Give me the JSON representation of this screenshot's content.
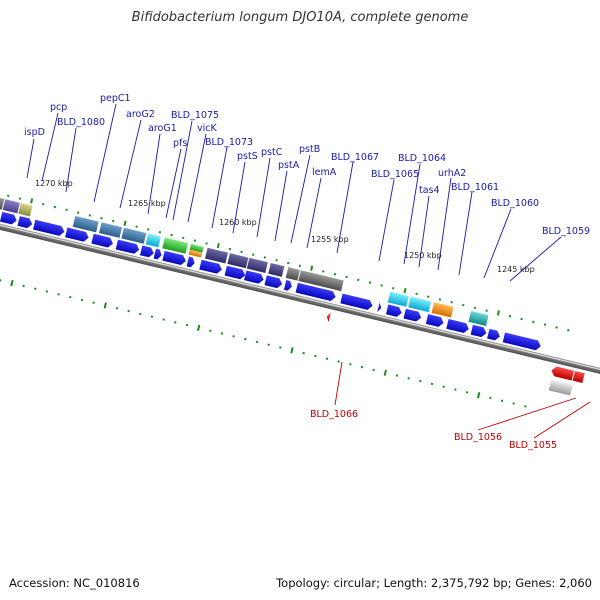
{
  "title": "Bifidobacterium longum DJO10A, complete genome",
  "footer": {
    "accession": "Accession: NC_010816",
    "summary": "Topology: circular; Length: 2,375,792 bp; Genes: 2,060"
  },
  "colors": {
    "forward_label": "#1a1aa8",
    "reverse_label": "#c00000",
    "cds": "#1010e0",
    "reverse_cds": "#ee1111",
    "tick": "#1c8c1c",
    "backbone": "#8a8a8a"
  },
  "scale_labels": [
    "1270 kbp",
    "1265 kbp",
    "1260 kbp",
    "1255 kbp",
    "1250 kbp",
    "1245 kbp"
  ],
  "forward_genes": [
    "ispD",
    "pcp",
    "BLD_1080",
    "pepC1",
    "aroG2",
    "aroG1",
    "pfs",
    "BLD_1075",
    "vicK",
    "BLD_1073",
    "pstS",
    "pstC",
    "pstA",
    "pstB",
    "lemA",
    "BLD_1067",
    "BLD_1065",
    "BLD_1064",
    "tas4",
    "urhA2",
    "BLD_1061",
    "BLD_1060",
    "BLD_1059"
  ],
  "reverse_genes": [
    "BLD_1066",
    "BLD_1056",
    "BLD_1055"
  ]
}
